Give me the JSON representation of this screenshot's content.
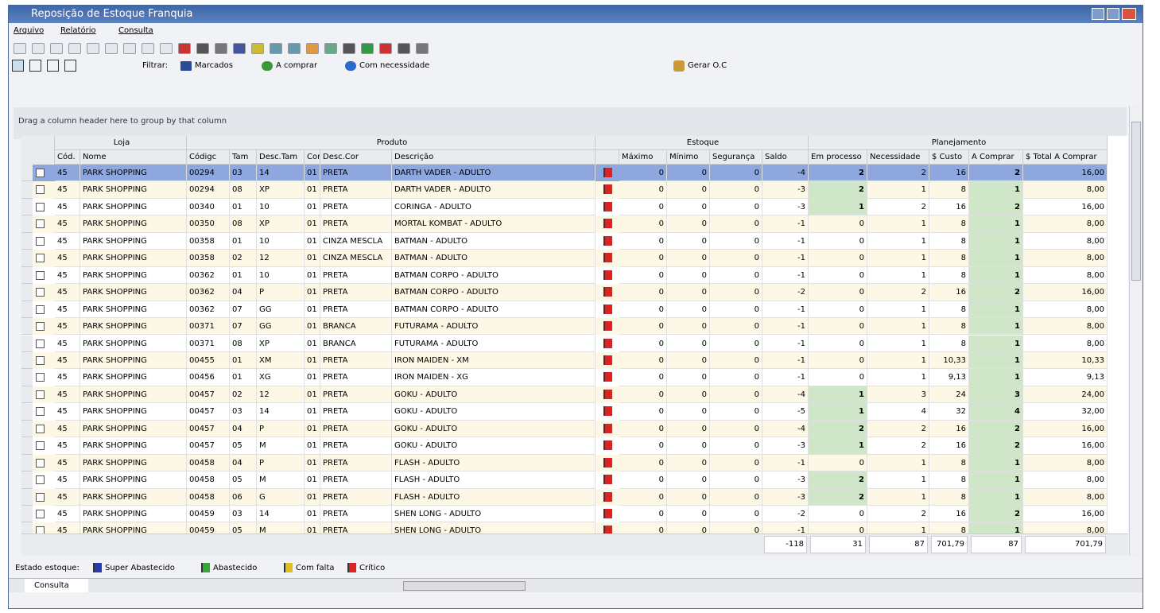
{
  "window": {
    "title": "Reposição de Estoque Franquia"
  },
  "menu": [
    "Arquivo",
    "Relatório",
    "Consulta"
  ],
  "filter": {
    "label": "Filtrar:",
    "items": [
      "Marcados",
      "A comprar",
      "Com necessidade"
    ],
    "action": "Gerar O.C"
  },
  "group_hint": "Drag a column header here to group by that column",
  "grid": {
    "bands": [
      "Loja",
      "Produto",
      "Estoque",
      "Planejamento"
    ],
    "columns": [
      "Cód.",
      "Nome",
      "Códigc",
      "Tam",
      "Desc.Tam",
      "Cor",
      "Desc.Cor",
      "Descrição",
      "Máximo",
      "Mínimo",
      "Segurança",
      "Saldo",
      "Em processo",
      "Necessidade",
      "$ Custo",
      "A Comprar",
      "$ Total A Comprar"
    ],
    "rows": [
      [
        "45",
        "PARK SHOPPING",
        "00294",
        "03",
        "14",
        "01",
        "PRETA",
        "DARTH VADER - ADULTO",
        "0",
        "0",
        "0",
        "-4",
        "2",
        "2",
        "16",
        "2",
        "16,00"
      ],
      [
        "45",
        "PARK SHOPPING",
        "00294",
        "08",
        "XP",
        "01",
        "PRETA",
        "DARTH VADER - ADULTO",
        "0",
        "0",
        "0",
        "-3",
        "2",
        "1",
        "8",
        "1",
        "8,00"
      ],
      [
        "45",
        "PARK SHOPPING",
        "00340",
        "01",
        "10",
        "01",
        "PRETA",
        "CORINGA - ADULTO",
        "0",
        "0",
        "0",
        "-3",
        "1",
        "2",
        "16",
        "2",
        "16,00"
      ],
      [
        "45",
        "PARK SHOPPING",
        "00350",
        "08",
        "XP",
        "01",
        "PRETA",
        "MORTAL KOMBAT - ADULTO",
        "0",
        "0",
        "0",
        "-1",
        "0",
        "1",
        "8",
        "1",
        "8,00"
      ],
      [
        "45",
        "PARK SHOPPING",
        "00358",
        "01",
        "10",
        "01",
        "CINZA MESCLA",
        "BATMAN - ADULTO",
        "0",
        "0",
        "0",
        "-1",
        "0",
        "1",
        "8",
        "1",
        "8,00"
      ],
      [
        "45",
        "PARK SHOPPING",
        "00358",
        "02",
        "12",
        "01",
        "CINZA MESCLA",
        "BATMAN - ADULTO",
        "0",
        "0",
        "0",
        "-1",
        "0",
        "1",
        "8",
        "1",
        "8,00"
      ],
      [
        "45",
        "PARK SHOPPING",
        "00362",
        "01",
        "10",
        "01",
        "PRETA",
        "BATMAN CORPO - ADULTO",
        "0",
        "0",
        "0",
        "-1",
        "0",
        "1",
        "8",
        "1",
        "8,00"
      ],
      [
        "45",
        "PARK SHOPPING",
        "00362",
        "04",
        "P",
        "01",
        "PRETA",
        "BATMAN CORPO - ADULTO",
        "0",
        "0",
        "0",
        "-2",
        "0",
        "2",
        "16",
        "2",
        "16,00"
      ],
      [
        "45",
        "PARK SHOPPING",
        "00362",
        "07",
        "GG",
        "01",
        "PRETA",
        "BATMAN CORPO - ADULTO",
        "0",
        "0",
        "0",
        "-1",
        "0",
        "1",
        "8",
        "1",
        "8,00"
      ],
      [
        "45",
        "PARK SHOPPING",
        "00371",
        "07",
        "GG",
        "01",
        "BRANCA",
        "FUTURAMA - ADULTO",
        "0",
        "0",
        "0",
        "-1",
        "0",
        "1",
        "8",
        "1",
        "8,00"
      ],
      [
        "45",
        "PARK SHOPPING",
        "00371",
        "08",
        "XP",
        "01",
        "BRANCA",
        "FUTURAMA - ADULTO",
        "0",
        "0",
        "0",
        "-1",
        "0",
        "1",
        "8",
        "1",
        "8,00"
      ],
      [
        "45",
        "PARK SHOPPING",
        "00455",
        "01",
        "XM",
        "01",
        "PRETA",
        "IRON MAIDEN - XM",
        "0",
        "0",
        "0",
        "-1",
        "0",
        "1",
        "10,33",
        "1",
        "10,33"
      ],
      [
        "45",
        "PARK SHOPPING",
        "00456",
        "01",
        "XG",
        "01",
        "PRETA",
        "IRON MAIDEN - XG",
        "0",
        "0",
        "0",
        "-1",
        "0",
        "1",
        "9,13",
        "1",
        "9,13"
      ],
      [
        "45",
        "PARK SHOPPING",
        "00457",
        "02",
        "12",
        "01",
        "PRETA",
        "GOKU - ADULTO",
        "0",
        "0",
        "0",
        "-4",
        "1",
        "3",
        "24",
        "3",
        "24,00"
      ],
      [
        "45",
        "PARK SHOPPING",
        "00457",
        "03",
        "14",
        "01",
        "PRETA",
        "GOKU - ADULTO",
        "0",
        "0",
        "0",
        "-5",
        "1",
        "4",
        "32",
        "4",
        "32,00"
      ],
      [
        "45",
        "PARK SHOPPING",
        "00457",
        "04",
        "P",
        "01",
        "PRETA",
        "GOKU - ADULTO",
        "0",
        "0",
        "0",
        "-4",
        "2",
        "2",
        "16",
        "2",
        "16,00"
      ],
      [
        "45",
        "PARK SHOPPING",
        "00457",
        "05",
        "M",
        "01",
        "PRETA",
        "GOKU - ADULTO",
        "0",
        "0",
        "0",
        "-3",
        "1",
        "2",
        "16",
        "2",
        "16,00"
      ],
      [
        "45",
        "PARK SHOPPING",
        "00458",
        "04",
        "P",
        "01",
        "PRETA",
        "FLASH - ADULTO",
        "0",
        "0",
        "0",
        "-1",
        "0",
        "1",
        "8",
        "1",
        "8,00"
      ],
      [
        "45",
        "PARK SHOPPING",
        "00458",
        "05",
        "M",
        "01",
        "PRETA",
        "FLASH - ADULTO",
        "0",
        "0",
        "0",
        "-3",
        "2",
        "1",
        "8",
        "1",
        "8,00"
      ],
      [
        "45",
        "PARK SHOPPING",
        "00458",
        "06",
        "G",
        "01",
        "PRETA",
        "FLASH - ADULTO",
        "0",
        "0",
        "0",
        "-3",
        "2",
        "1",
        "8",
        "1",
        "8,00"
      ],
      [
        "45",
        "PARK SHOPPING",
        "00459",
        "03",
        "14",
        "01",
        "PRETA",
        "SHEN LONG - ADULTO",
        "0",
        "0",
        "0",
        "-2",
        "0",
        "2",
        "16",
        "2",
        "16,00"
      ],
      [
        "45",
        "PARK SHOPPING",
        "00459",
        "05",
        "M",
        "01",
        "PRETA",
        "SHEN LONG - ADULTO",
        "0",
        "0",
        "0",
        "-1",
        "0",
        "1",
        "8",
        "1",
        "8,00"
      ]
    ],
    "totals": [
      "-118",
      "31",
      "87",
      "701,79",
      "87",
      "701,79"
    ]
  },
  "legend": {
    "label": "Estado estoque:",
    "items": [
      "Super Abastecido",
      "Abastecido",
      "Com falta",
      "Crítico"
    ]
  },
  "status": {
    "tab": "Consulta"
  }
}
